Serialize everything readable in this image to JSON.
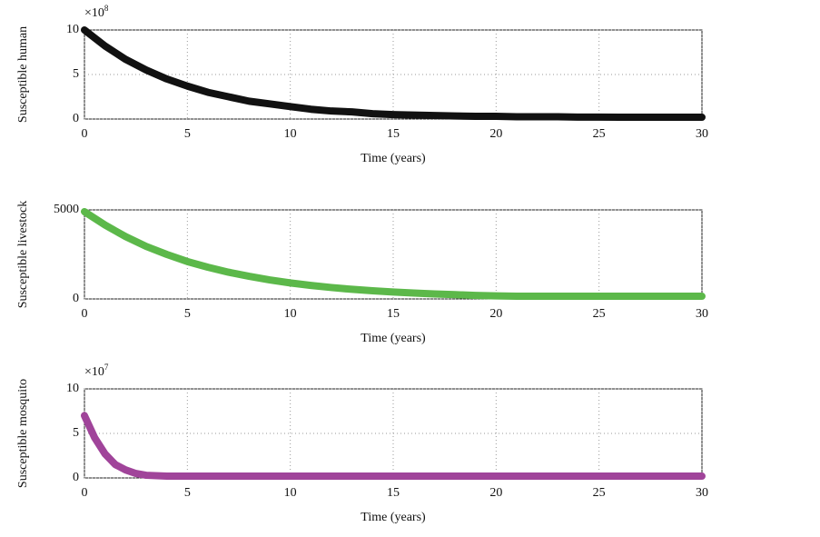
{
  "chart_data": [
    {
      "type": "line",
      "y_label": "Susceptible human",
      "x_label": "Time (years)",
      "y_scale_base": "×10",
      "y_scale_exponent": "8",
      "color": "#111111",
      "x": [
        0,
        1,
        2,
        3,
        4,
        5,
        6,
        7,
        8,
        9,
        10,
        11,
        12,
        13,
        14,
        15,
        16,
        17,
        18,
        19,
        20,
        21,
        22,
        23,
        24,
        25,
        26,
        27,
        28,
        29,
        30
      ],
      "values": [
        10,
        8.2,
        6.7,
        5.5,
        4.5,
        3.7,
        3.0,
        2.5,
        2.0,
        1.7,
        1.4,
        1.1,
        0.9,
        0.8,
        0.6,
        0.5,
        0.45,
        0.4,
        0.35,
        0.3,
        0.3,
        0.25,
        0.25,
        0.25,
        0.22,
        0.22,
        0.2,
        0.2,
        0.2,
        0.2,
        0.2
      ],
      "xlim": [
        0,
        30
      ],
      "xticks": [
        0,
        5,
        10,
        15,
        20,
        25,
        30
      ],
      "ylim": [
        0,
        10
      ],
      "yticks": [
        0,
        5,
        10
      ],
      "grid": true
    },
    {
      "type": "line",
      "y_label": "Susceptible livestock",
      "x_label": "Time (years)",
      "color": "#5cb84a",
      "x": [
        0,
        1,
        2,
        3,
        4,
        5,
        6,
        7,
        8,
        9,
        10,
        11,
        12,
        13,
        14,
        15,
        16,
        17,
        18,
        19,
        20,
        21,
        22,
        23,
        24,
        25,
        26,
        27,
        28,
        29,
        30
      ],
      "values": [
        4900,
        4150,
        3500,
        2950,
        2500,
        2100,
        1780,
        1500,
        1270,
        1070,
        900,
        760,
        640,
        540,
        460,
        390,
        330,
        280,
        240,
        200,
        170,
        150,
        150,
        150,
        150,
        150,
        150,
        150,
        150,
        150,
        150
      ],
      "xlim": [
        0,
        30
      ],
      "xticks": [
        0,
        5,
        10,
        15,
        20,
        25,
        30
      ],
      "ylim": [
        0,
        5000
      ],
      "yticks": [
        0,
        5000
      ],
      "grid": true
    },
    {
      "type": "line",
      "y_label": "Susceptible mosquito",
      "x_label": "Time (years)",
      "y_scale_base": "×10",
      "y_scale_exponent": "7",
      "color": "#a0449a",
      "x": [
        0,
        0.5,
        1,
        1.5,
        2,
        2.5,
        3,
        4,
        5,
        10,
        15,
        20,
        25,
        30
      ],
      "values": [
        7,
        4.5,
        2.7,
        1.5,
        0.9,
        0.5,
        0.3,
        0.2,
        0.2,
        0.2,
        0.2,
        0.2,
        0.2,
        0.2
      ],
      "xlim": [
        0,
        30
      ],
      "xticks": [
        0,
        5,
        10,
        15,
        20,
        25,
        30
      ],
      "ylim": [
        0,
        10
      ],
      "yticks": [
        0,
        5,
        10
      ],
      "grid": true
    }
  ]
}
